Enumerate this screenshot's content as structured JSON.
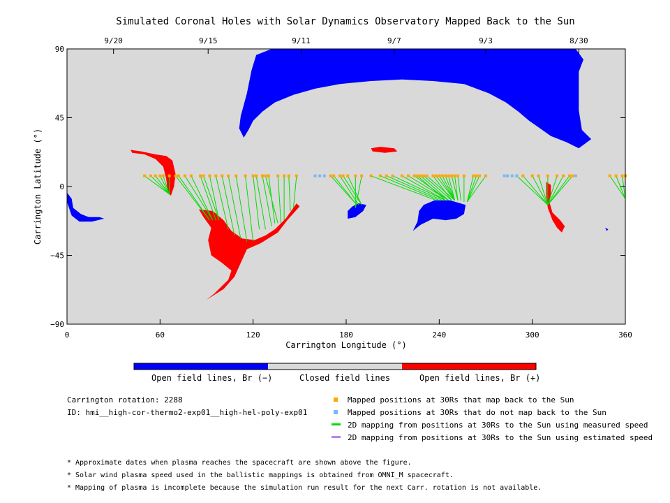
{
  "chart_data": {
    "type": "scatter",
    "title": "Simulated Coronal Holes with Solar Dynamics Observatory Mapped Back to the Sun",
    "xlabel": "Carrington Longitude (°)",
    "ylabel": "Carrington Latitude (°)",
    "xlim": [
      0,
      360
    ],
    "ylim": [
      -90,
      90
    ],
    "x_ticks": [
      "0",
      "60",
      "120",
      "180",
      "240",
      "300",
      "360"
    ],
    "y_ticks": [
      "90",
      "45",
      "0",
      "−45",
      "−90"
    ],
    "top_date_ticks": [
      {
        "label": "9/20",
        "lon": 30
      },
      {
        "label": "9/15",
        "lon": 91
      },
      {
        "label": "9/11",
        "lon": 151
      },
      {
        "label": "9/7",
        "lon": 211
      },
      {
        "label": "9/3",
        "lon": 270
      },
      {
        "label": "8/30",
        "lon": 330
      }
    ],
    "background_color": "#d9d9d9",
    "colors": {
      "open_negative": "#0000ff",
      "open_positive": "#ff0000",
      "closed": "#d9d9d9",
      "mapped": "#ffa500",
      "unmapped": "#7ab8f5",
      "measured": "#00dd00",
      "estimated": "#c080f0"
    },
    "regions": [
      {
        "polarity": "negative",
        "name": "north polar coronal hole",
        "points": [
          [
            114,
            32
          ],
          [
            117,
            37
          ],
          [
            120,
            43
          ],
          [
            126,
            49
          ],
          [
            134,
            55
          ],
          [
            146,
            60
          ],
          [
            160,
            64
          ],
          [
            176,
            67
          ],
          [
            196,
            69
          ],
          [
            216,
            70
          ],
          [
            236,
            69
          ],
          [
            256,
            67
          ],
          [
            272,
            61
          ],
          [
            283,
            55
          ],
          [
            291,
            49
          ],
          [
            298,
            43
          ],
          [
            305,
            38
          ],
          [
            312,
            33
          ],
          [
            322,
            29
          ],
          [
            330,
            25
          ],
          [
            338,
            31
          ],
          [
            332,
            37
          ],
          [
            330,
            50
          ],
          [
            330,
            62
          ],
          [
            330,
            75
          ],
          [
            333,
            83
          ],
          [
            328,
            90
          ],
          [
            190,
            90
          ],
          [
            132,
            90
          ],
          [
            122,
            86
          ],
          [
            119,
            76
          ],
          [
            116,
            61
          ],
          [
            112,
            46
          ],
          [
            111,
            38
          ]
        ]
      },
      {
        "polarity": "negative",
        "name": "southwest patch",
        "points": [
          [
            0,
            -4
          ],
          [
            3,
            -8
          ],
          [
            4,
            -14
          ],
          [
            9,
            -18
          ],
          [
            14,
            -20
          ],
          [
            21,
            -20
          ],
          [
            24,
            -21
          ],
          [
            16,
            -23
          ],
          [
            8,
            -23
          ],
          [
            3,
            -19
          ],
          [
            1,
            -13
          ],
          [
            0,
            -10
          ]
        ]
      },
      {
        "polarity": "negative",
        "name": "patch near 185",
        "points": [
          [
            181,
            -16
          ],
          [
            184,
            -13
          ],
          [
            188,
            -11
          ],
          [
            193,
            -12
          ],
          [
            191,
            -16
          ],
          [
            186,
            -20
          ],
          [
            181,
            -21
          ]
        ]
      },
      {
        "polarity": "negative",
        "name": "patch near 245",
        "points": [
          [
            227,
            -16
          ],
          [
            230,
            -12
          ],
          [
            237,
            -9
          ],
          [
            247,
            -9
          ],
          [
            257,
            -12
          ],
          [
            256,
            -18
          ],
          [
            251,
            -21
          ],
          [
            244,
            -22
          ],
          [
            236,
            -21
          ],
          [
            228,
            -25
          ],
          [
            223,
            -29
          ],
          [
            226,
            -23
          ]
        ]
      },
      {
        "polarity": "negative",
        "name": "speck near 348",
        "points": [
          [
            347,
            -27
          ],
          [
            349,
            -28
          ],
          [
            348,
            -29
          ]
        ]
      },
      {
        "polarity": "positive",
        "name": "patch near 55",
        "points": [
          [
            41,
            24
          ],
          [
            48,
            23
          ],
          [
            57,
            21
          ],
          [
            64,
            20
          ],
          [
            68,
            17
          ],
          [
            70,
            8
          ],
          [
            69,
            0
          ],
          [
            67,
            -6
          ],
          [
            65,
            -4
          ],
          [
            64,
            5
          ],
          [
            62,
            13
          ],
          [
            57,
            18
          ],
          [
            50,
            21
          ],
          [
            42,
            22
          ]
        ]
      },
      {
        "polarity": "positive",
        "name": "patch near 205",
        "points": [
          [
            196,
            25
          ],
          [
            202,
            26
          ],
          [
            211,
            25
          ],
          [
            213,
            23
          ],
          [
            205,
            22
          ],
          [
            197,
            23
          ]
        ]
      },
      {
        "polarity": "positive",
        "name": "large southern patch",
        "points": [
          [
            85,
            -15
          ],
          [
            94,
            -16
          ],
          [
            101,
            -22
          ],
          [
            106,
            -29
          ],
          [
            113,
            -34
          ],
          [
            121,
            -35
          ],
          [
            128,
            -32
          ],
          [
            134,
            -28
          ],
          [
            141,
            -21
          ],
          [
            148,
            -11
          ],
          [
            150,
            -13
          ],
          [
            142,
            -22
          ],
          [
            136,
            -30
          ],
          [
            125,
            -37
          ],
          [
            116,
            -41
          ],
          [
            112,
            -50
          ],
          [
            108,
            -59
          ],
          [
            101,
            -67
          ],
          [
            90,
            -74
          ],
          [
            95,
            -70
          ],
          [
            104,
            -61
          ],
          [
            106,
            -55
          ],
          [
            100,
            -50
          ],
          [
            93,
            -45
          ],
          [
            91,
            -35
          ],
          [
            93,
            -27
          ],
          [
            88,
            -20
          ]
        ]
      },
      {
        "polarity": "positive",
        "name": "patch near 310",
        "points": [
          [
            309,
            3
          ],
          [
            312,
            1
          ],
          [
            312,
            -5
          ],
          [
            311,
            -10
          ],
          [
            313,
            -17
          ],
          [
            318,
            -22
          ],
          [
            321,
            -26
          ],
          [
            319,
            -30
          ],
          [
            316,
            -27
          ],
          [
            313,
            -22
          ],
          [
            310,
            -14
          ],
          [
            309,
            -6
          ]
        ]
      }
    ],
    "mapped_lon": [
      50,
      54,
      57,
      60,
      62,
      66,
      70,
      72,
      76,
      80,
      86,
      88,
      92,
      96,
      100,
      104,
      109,
      115,
      120,
      122,
      126,
      128,
      130,
      136,
      140,
      143,
      148,
      170,
      172,
      176,
      178,
      181,
      186,
      190,
      196,
      202,
      206,
      210,
      216,
      220,
      224,
      226,
      228,
      230,
      232,
      236,
      238,
      240,
      242,
      244,
      246,
      248,
      250,
      252,
      256,
      262,
      264,
      266,
      270,
      290,
      294,
      300,
      304,
      310,
      316,
      320,
      324,
      326,
      350,
      354,
      358,
      360
    ],
    "mapped_lat": 7,
    "unmapped_lon": [
      160,
      163,
      166,
      282,
      284,
      287,
      290,
      328
    ],
    "unmapped_lat": 7,
    "measured_segments": [
      [
        50,
        70,
        66,
        -5
      ],
      [
        54,
        70,
        66,
        -5
      ],
      [
        57,
        70,
        66,
        -5
      ],
      [
        60,
        70,
        66,
        -5
      ],
      [
        62,
        70,
        66,
        -5
      ],
      [
        66,
        70,
        66,
        -5
      ],
      [
        70,
        90,
        92,
        -22
      ],
      [
        72,
        90,
        92,
        -22
      ],
      [
        76,
        90,
        94,
        -22
      ],
      [
        80,
        90,
        94,
        -22
      ],
      [
        86,
        90,
        96,
        -22
      ],
      [
        88,
        90,
        98,
        -22
      ],
      [
        92,
        100,
        98,
        -22
      ],
      [
        96,
        110,
        104,
        -28
      ],
      [
        100,
        110,
        108,
        -32
      ],
      [
        104,
        110,
        112,
        -34
      ],
      [
        109,
        110,
        116,
        -36
      ],
      [
        115,
        110,
        120,
        -36
      ],
      [
        120,
        128,
        124,
        -28
      ],
      [
        122,
        130,
        128,
        -28
      ],
      [
        126,
        130,
        132,
        -26
      ],
      [
        128,
        130,
        136,
        -24
      ],
      [
        130,
        130,
        134,
        -24
      ],
      [
        136,
        140,
        138,
        -24
      ],
      [
        140,
        145,
        140,
        -22
      ],
      [
        143,
        150,
        144,
        -16
      ],
      [
        148,
        150,
        146,
        -14
      ],
      [
        170,
        180,
        186,
        -11
      ],
      [
        172,
        180,
        186,
        -11
      ],
      [
        176,
        180,
        188,
        -12
      ],
      [
        178,
        180,
        190,
        -12
      ],
      [
        181,
        180,
        190,
        -12
      ],
      [
        186,
        180,
        186,
        -14
      ],
      [
        190,
        180,
        186,
        -14
      ],
      [
        196,
        210,
        238,
        -9
      ],
      [
        202,
        210,
        240,
        -9
      ],
      [
        206,
        210,
        242,
        -9
      ],
      [
        210,
        210,
        244,
        -9
      ],
      [
        216,
        220,
        244,
        -9
      ],
      [
        220,
        220,
        246,
        -9
      ],
      [
        224,
        230,
        246,
        -9
      ],
      [
        226,
        230,
        244,
        -9
      ],
      [
        228,
        230,
        246,
        -9
      ],
      [
        230,
        230,
        248,
        -9
      ],
      [
        232,
        240,
        250,
        -9
      ],
      [
        236,
        240,
        248,
        -9
      ],
      [
        238,
        240,
        250,
        -9
      ],
      [
        240,
        240,
        250,
        -9
      ],
      [
        242,
        240,
        250,
        -9
      ],
      [
        244,
        240,
        250,
        -9
      ],
      [
        246,
        250,
        250,
        -9
      ],
      [
        248,
        250,
        252,
        -9
      ],
      [
        250,
        250,
        252,
        -9
      ],
      [
        252,
        250,
        254,
        -9
      ],
      [
        256,
        250,
        256,
        -10
      ],
      [
        262,
        250,
        258,
        -10
      ],
      [
        264,
        250,
        258,
        -10
      ],
      [
        266,
        250,
        258,
        -10
      ],
      [
        270,
        250,
        258,
        -10
      ],
      [
        290,
        300,
        310,
        -12
      ],
      [
        294,
        300,
        310,
        -12
      ],
      [
        300,
        300,
        310,
        -12
      ],
      [
        304,
        300,
        310,
        -12
      ],
      [
        310,
        300,
        310,
        -12
      ],
      [
        316,
        310,
        310,
        -12
      ],
      [
        320,
        310,
        310,
        -12
      ],
      [
        324,
        310,
        310,
        -12
      ],
      [
        326,
        310,
        310,
        -12
      ],
      [
        350,
        360,
        360,
        -8
      ],
      [
        354,
        360,
        360,
        -8
      ],
      [
        358,
        360,
        360,
        -8
      ]
    ],
    "colorbar": {
      "segments": [
        {
          "color": "#0000ff",
          "label": "Open field lines, Br (−)"
        },
        {
          "color": "#d9d9d9",
          "label": "Closed field lines"
        },
        {
          "color": "#ff0000",
          "label": "Open field lines, Br (+)"
        }
      ]
    },
    "legend": [
      {
        "kind": "square",
        "color": "#ffa500",
        "label": "Mapped positions at 30Rs that map back to the Sun"
      },
      {
        "kind": "square",
        "color": "#7ab8f5",
        "label": "Mapped positions at 30Rs that do not map back to the Sun"
      },
      {
        "kind": "line",
        "color": "#00dd00",
        "label": "2D mapping from positions at 30Rs to the Sun using measured speed"
      },
      {
        "kind": "line",
        "color": "#c080f0",
        "label": "2D mapping from positions at 30Rs to the Sun using estimated speed"
      }
    ]
  },
  "info": {
    "rotation": "Carrington rotation: 2288",
    "id": "ID: hmi__high-cor-thermo2-exp01__high-hel-poly-exp01"
  },
  "notes": [
    "* Approximate dates when plasma reaches the spacecraft are shown above the figure.",
    "* Solar wind plasma speed used in the ballistic mappings is obtained from OMNI_M spacecraft.",
    "* Mapping of plasma is incomplete because the simulation run result for the next Carr. rotation is not available."
  ]
}
